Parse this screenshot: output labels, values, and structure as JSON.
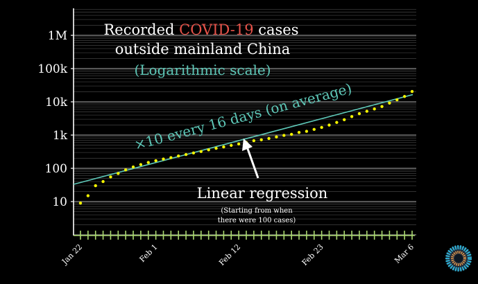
{
  "chart_data": {
    "type": "scatter",
    "title_line1_prefix": "Recorded ",
    "title_highlight": "COVID-19",
    "title_line1_suffix": " cases",
    "title_line2": "outside mainland China",
    "subtitle": "(Logarithmic scale)",
    "y_scale": "log",
    "ylim": [
      1,
      10000000
    ],
    "y_ticks": [
      {
        "label": "10",
        "value": 10
      },
      {
        "label": "100",
        "value": 100
      },
      {
        "label": "1k",
        "value": 1000
      },
      {
        "label": "10k",
        "value": 10000
      },
      {
        "label": "100k",
        "value": 100000
      },
      {
        "label": "1M",
        "value": 1000000
      }
    ],
    "x_range": [
      "2020-01-22",
      "2020-03-06"
    ],
    "x_ticks": [
      {
        "label": "Jan 22",
        "date": "2020-01-22"
      },
      {
        "label": "Feb 1",
        "date": "2020-02-01"
      },
      {
        "label": "Feb 12",
        "date": "2020-02-12"
      },
      {
        "label": "Feb 23",
        "date": "2020-02-23"
      },
      {
        "label": "Mar 6",
        "date": "2020-03-06"
      }
    ],
    "grid": true,
    "points": {
      "x": [
        "2020-01-22",
        "2020-01-23",
        "2020-01-24",
        "2020-01-25",
        "2020-01-26",
        "2020-01-27",
        "2020-01-28",
        "2020-01-29",
        "2020-01-30",
        "2020-01-31",
        "2020-02-01",
        "2020-02-02",
        "2020-02-03",
        "2020-02-04",
        "2020-02-05",
        "2020-02-06",
        "2020-02-07",
        "2020-02-08",
        "2020-02-09",
        "2020-02-10",
        "2020-02-11",
        "2020-02-12",
        "2020-02-13",
        "2020-02-14",
        "2020-02-15",
        "2020-02-16",
        "2020-02-17",
        "2020-02-18",
        "2020-02-19",
        "2020-02-20",
        "2020-02-21",
        "2020-02-22",
        "2020-02-23",
        "2020-02-24",
        "2020-02-25",
        "2020-02-26",
        "2020-02-27",
        "2020-02-28",
        "2020-02-29",
        "2020-03-01",
        "2020-03-02",
        "2020-03-03",
        "2020-03-04",
        "2020-03-05",
        "2020-03-06"
      ],
      "y": [
        9,
        15,
        30,
        40,
        55,
        70,
        90,
        110,
        130,
        150,
        170,
        190,
        210,
        235,
        260,
        290,
        320,
        360,
        400,
        440,
        490,
        540,
        600,
        680,
        720,
        790,
        880,
        980,
        1050,
        1200,
        1300,
        1480,
        1700,
        2000,
        2400,
        2900,
        3600,
        4400,
        5200,
        6100,
        7200,
        9200,
        11500,
        14500,
        20500
      ],
      "color": "#f3f300"
    },
    "regression": {
      "label": "Linear regression",
      "annotation": "×10 every 16 days (on average)",
      "note_line1": "(Starting from when",
      "note_line2": "there were 100 cases)",
      "start": {
        "x": "2020-01-22",
        "y": 33
      },
      "end": {
        "x": "2020-03-06",
        "y": 16500
      },
      "color": "#5ec8b8"
    },
    "highlight_color": "#e8534a",
    "text_color": "#ffffff",
    "axis_color": "#a9d86e"
  }
}
